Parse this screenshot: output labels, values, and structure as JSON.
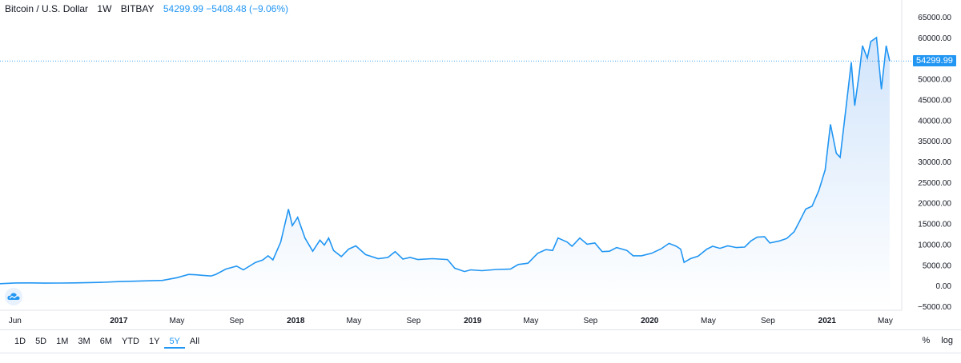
{
  "header": {
    "symbol": "Bitcoin / U.S. Dollar",
    "interval": "1W",
    "exchange": "BITBAY",
    "last_price": "54299.99",
    "change": "−5408.48 (−9.06%)"
  },
  "price_tag": "54299.99",
  "logo_icon": "tradingview-cloud-icon",
  "time_ranges": [
    "1D",
    "5D",
    "1M",
    "3M",
    "6M",
    "YTD",
    "1Y",
    "5Y",
    "All"
  ],
  "active_range": "5Y",
  "options": {
    "percent": "%",
    "log": "log"
  },
  "colors": {
    "line": "#2196f3",
    "accent": "#2196f3",
    "area_top": "#cfe3fb"
  },
  "chart_data": {
    "type": "area",
    "title": "Bitcoin / U.S. Dollar",
    "ylim": [
      -5000,
      65000
    ],
    "y_ticks": [
      {
        "value": 65000,
        "label": "65000.00"
      },
      {
        "value": 60000,
        "label": "60000.00"
      },
      {
        "value": 55000,
        "label": "55000.00"
      },
      {
        "value": 50000,
        "label": "50000.00"
      },
      {
        "value": 45000,
        "label": "45000.00"
      },
      {
        "value": 40000,
        "label": "40000.00"
      },
      {
        "value": 35000,
        "label": "35000.00"
      },
      {
        "value": 30000,
        "label": "30000.00"
      },
      {
        "value": 25000,
        "label": "25000.00"
      },
      {
        "value": 20000,
        "label": "20000.00"
      },
      {
        "value": 15000,
        "label": "15000.00"
      },
      {
        "value": 10000,
        "label": "10000.00"
      },
      {
        "value": 5000,
        "label": "5000.00"
      },
      {
        "value": 0,
        "label": "0.00"
      },
      {
        "value": -5000,
        "label": "−5000.00"
      }
    ],
    "x_ticks": [
      {
        "date": "2016-06",
        "label": "Jun",
        "bold": false
      },
      {
        "date": "2017-01",
        "label": "2017",
        "bold": true
      },
      {
        "date": "2017-05",
        "label": "May",
        "bold": false
      },
      {
        "date": "2017-09",
        "label": "Sep",
        "bold": false
      },
      {
        "date": "2018-01",
        "label": "2018",
        "bold": true
      },
      {
        "date": "2018-05",
        "label": "May",
        "bold": false
      },
      {
        "date": "2018-09",
        "label": "Sep",
        "bold": false
      },
      {
        "date": "2019-01",
        "label": "2019",
        "bold": true
      },
      {
        "date": "2019-05",
        "label": "May",
        "bold": false
      },
      {
        "date": "2019-09",
        "label": "Sep",
        "bold": false
      },
      {
        "date": "2020-01",
        "label": "2020",
        "bold": true
      },
      {
        "date": "2020-05",
        "label": "May",
        "bold": false
      },
      {
        "date": "2020-09",
        "label": "Sep",
        "bold": false
      },
      {
        "date": "2021-01",
        "label": "2021",
        "bold": true
      },
      {
        "date": "2021-05",
        "label": "May",
        "bold": false
      }
    ],
    "series": [
      {
        "points": [
          [
            "2016-05-01",
            450
          ],
          [
            "2016-06-01",
            620
          ],
          [
            "2016-07-01",
            650
          ],
          [
            "2016-08-01",
            580
          ],
          [
            "2016-09-01",
            600
          ],
          [
            "2016-10-01",
            650
          ],
          [
            "2016-11-01",
            720
          ],
          [
            "2016-12-01",
            800
          ],
          [
            "2017-01-01",
            950
          ],
          [
            "2017-02-01",
            1050
          ],
          [
            "2017-03-01",
            1150
          ],
          [
            "2017-04-01",
            1250
          ],
          [
            "2017-05-01",
            1900
          ],
          [
            "2017-05-25",
            2700
          ],
          [
            "2017-06-10",
            2600
          ],
          [
            "2017-07-10",
            2300
          ],
          [
            "2017-07-20",
            2700
          ],
          [
            "2017-08-10",
            4000
          ],
          [
            "2017-09-01",
            4700
          ],
          [
            "2017-09-15",
            3800
          ],
          [
            "2017-10-10",
            5600
          ],
          [
            "2017-10-25",
            6200
          ],
          [
            "2017-11-05",
            7200
          ],
          [
            "2017-11-15",
            6200
          ],
          [
            "2017-12-01",
            10500
          ],
          [
            "2017-12-17",
            18500
          ],
          [
            "2017-12-25",
            14500
          ],
          [
            "2018-01-05",
            16500
          ],
          [
            "2018-01-20",
            11500
          ],
          [
            "2018-02-05",
            8300
          ],
          [
            "2018-02-20",
            11000
          ],
          [
            "2018-03-01",
            9800
          ],
          [
            "2018-03-10",
            11500
          ],
          [
            "2018-03-20",
            8500
          ],
          [
            "2018-04-05",
            7000
          ],
          [
            "2018-04-20",
            8800
          ],
          [
            "2018-05-05",
            9600
          ],
          [
            "2018-05-25",
            7500
          ],
          [
            "2018-06-20",
            6500
          ],
          [
            "2018-07-10",
            6800
          ],
          [
            "2018-07-25",
            8200
          ],
          [
            "2018-08-10",
            6400
          ],
          [
            "2018-08-25",
            6800
          ],
          [
            "2018-09-10",
            6300
          ],
          [
            "2018-10-10",
            6500
          ],
          [
            "2018-11-10",
            6300
          ],
          [
            "2018-11-25",
            4200
          ],
          [
            "2018-12-15",
            3400
          ],
          [
            "2018-12-28",
            3800
          ],
          [
            "2019-01-20",
            3600
          ],
          [
            "2019-02-20",
            3900
          ],
          [
            "2019-03-20",
            4000
          ],
          [
            "2019-04-05",
            5100
          ],
          [
            "2019-04-25",
            5400
          ],
          [
            "2019-05-15",
            7800
          ],
          [
            "2019-06-01",
            8700
          ],
          [
            "2019-06-15",
            8500
          ],
          [
            "2019-06-26",
            11500
          ],
          [
            "2019-07-15",
            10500
          ],
          [
            "2019-07-25",
            9500
          ],
          [
            "2019-08-10",
            11500
          ],
          [
            "2019-08-25",
            10000
          ],
          [
            "2019-09-10",
            10300
          ],
          [
            "2019-09-25",
            8200
          ],
          [
            "2019-10-10",
            8300
          ],
          [
            "2019-10-25",
            9200
          ],
          [
            "2019-11-15",
            8500
          ],
          [
            "2019-11-28",
            7200
          ],
          [
            "2019-12-15",
            7200
          ],
          [
            "2020-01-05",
            7800
          ],
          [
            "2020-01-25",
            8900
          ],
          [
            "2020-02-10",
            10200
          ],
          [
            "2020-02-25",
            9500
          ],
          [
            "2020-03-05",
            8800
          ],
          [
            "2020-03-12",
            5600
          ],
          [
            "2020-03-25",
            6500
          ],
          [
            "2020-04-10",
            7100
          ],
          [
            "2020-04-28",
            8800
          ],
          [
            "2020-05-10",
            9500
          ],
          [
            "2020-05-25",
            9000
          ],
          [
            "2020-06-10",
            9600
          ],
          [
            "2020-06-28",
            9200
          ],
          [
            "2020-07-15",
            9300
          ],
          [
            "2020-07-28",
            10800
          ],
          [
            "2020-08-10",
            11700
          ],
          [
            "2020-08-25",
            11800
          ],
          [
            "2020-09-05",
            10300
          ],
          [
            "2020-09-25",
            10800
          ],
          [
            "2020-10-10",
            11400
          ],
          [
            "2020-10-25",
            13000
          ],
          [
            "2020-11-05",
            15500
          ],
          [
            "2020-11-18",
            18500
          ],
          [
            "2020-12-01",
            19200
          ],
          [
            "2020-12-15",
            23000
          ],
          [
            "2020-12-28",
            28000
          ],
          [
            "2021-01-08",
            39000
          ],
          [
            "2021-01-20",
            32000
          ],
          [
            "2021-01-28",
            31000
          ],
          [
            "2021-02-10",
            44000
          ],
          [
            "2021-02-20",
            54000
          ],
          [
            "2021-02-27",
            43500
          ],
          [
            "2021-03-08",
            51000
          ],
          [
            "2021-03-15",
            58000
          ],
          [
            "2021-03-25",
            55000
          ],
          [
            "2021-04-01",
            59000
          ],
          [
            "2021-04-13",
            60000
          ],
          [
            "2021-04-23",
            47500
          ],
          [
            "2021-05-03",
            58000
          ],
          [
            "2021-05-10",
            54300
          ]
        ]
      }
    ]
  }
}
